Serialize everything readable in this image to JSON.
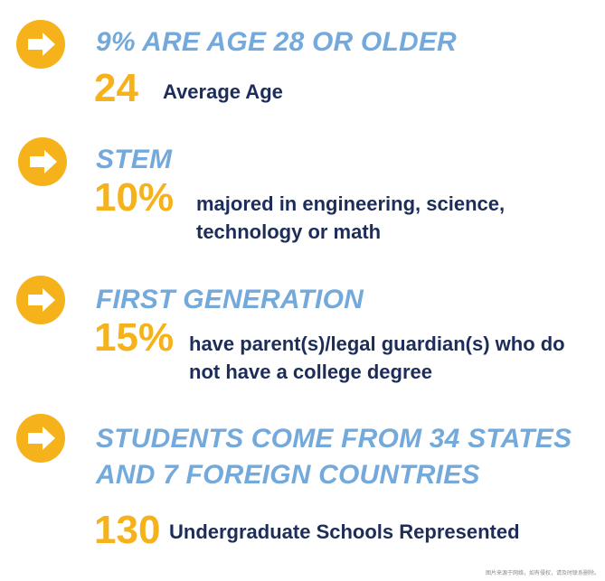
{
  "sections": [
    {
      "heading": "9% ARE AGE 28 OR OLDER",
      "stat": "24",
      "description": [
        "Average Age"
      ]
    },
    {
      "heading": "STEM",
      "stat": "10%",
      "description": [
        "majored in engineering, science,",
        "technology or math"
      ]
    },
    {
      "heading": "FIRST GENERATION",
      "stat": "15%",
      "description": [
        "have parent(s)/legal guardian(s) who do",
        "not have a college degree"
      ]
    },
    {
      "heading": "STUDENTS COME FROM 34 STATES",
      "heading_line2": "AND 7 FOREIGN COUNTRIES",
      "stat": "130",
      "description": [
        "Undergraduate Schools Represented"
      ]
    }
  ],
  "footnote": "图片来源于网络，如有侵权，请及时联系删除。",
  "colors": {
    "accent_orange": "#f6b21a",
    "heading_blue": "#74a9db",
    "text_navy": "#1d2d5a"
  },
  "icons": [
    "arrow-right-icon"
  ]
}
